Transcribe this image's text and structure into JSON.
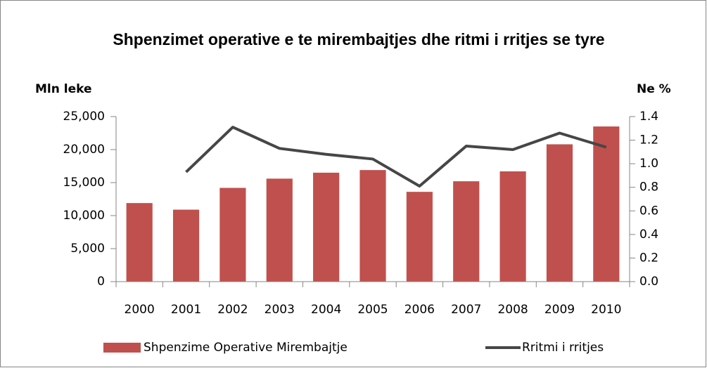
{
  "chart_data": {
    "type": "bar",
    "title": "Shpenzimet operative e te mirembajtjes dhe ritmi i rritjes se tyre",
    "y_label": "Mln leke",
    "y2_label": "Ne %",
    "categories": [
      "2000",
      "2001",
      "2002",
      "2003",
      "2004",
      "2005",
      "2006",
      "2007",
      "2008",
      "2009",
      "2010"
    ],
    "series": [
      {
        "name": "Shpenzime Operative Mirembajtje",
        "color": "#c0504d",
        "type": "bar",
        "values": [
          11900,
          10900,
          14200,
          15600,
          16500,
          16900,
          13600,
          15200,
          16700,
          20800,
          23500
        ]
      },
      {
        "name": "Rritmi i rritjes",
        "color": "#464646",
        "type": "line",
        "axis": "y2",
        "values": [
          null,
          0.93,
          1.31,
          1.13,
          1.08,
          1.04,
          0.81,
          1.15,
          1.12,
          1.26,
          1.14
        ]
      }
    ],
    "ylim": [
      0,
      25000
    ],
    "yticks": [
      0,
      {
        "value": 5000,
        "label": "5,000"
      },
      {
        "value": 10000,
        "label": "10,000"
      },
      {
        "value": 15000,
        "label": "15,000"
      },
      {
        "value": 20000,
        "label": "20,000"
      },
      {
        "value": 25000,
        "label": "25,000"
      }
    ],
    "y2lim": [
      0,
      1.4
    ],
    "y2ticks": [
      {
        "value": 0,
        "label": "0.0"
      },
      0.2,
      0.4,
      0.6,
      0.8,
      {
        "value": 1,
        "label": "1.0"
      },
      1.2,
      1.4
    ],
    "legend": "bottom"
  }
}
